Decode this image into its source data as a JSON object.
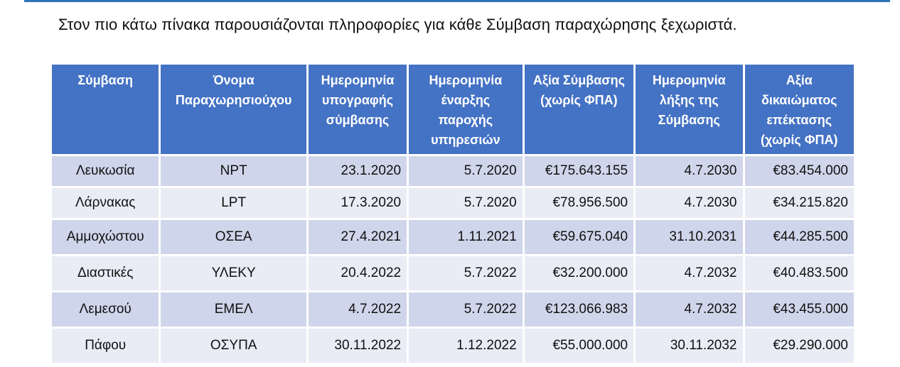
{
  "intro_text": "Στον πιο κάτω πίνακα παρουσιάζονται πληροφορίες για κάθε Σύμβαση παραχώρησης ξεχωριστά.",
  "table": {
    "headers": [
      "Σύμβαση",
      "Όνομα Παραχωρησιούχου",
      "Ημερομηνία υπογραφής σύμβασης",
      "Ημερομηνία έναρξης παροχής υπηρεσιών",
      "Αξία Σύμβασης (χωρίς ΦΠΑ)",
      "Ημερομηνία λήξης της Σύμβασης",
      "Αξία δικαιώματος επέκτασης (χωρίς ΦΠΑ)"
    ],
    "rows": [
      [
        "Λευκωσία",
        "NPT",
        "23.1.2020",
        "5.7.2020",
        "€175.643.155",
        "4.7.2030",
        "€83.454.000"
      ],
      [
        "Λάρνακας",
        "LPT",
        "17.3.2020",
        "5.7.2020",
        "€78.956.500",
        "4.7.2030",
        "€34.215.820"
      ],
      [
        "Αμμοχώστου",
        "ΟΣΕΑ",
        "27.4.2021",
        "1.11.2021",
        "€59.675.040",
        "31.10.2031",
        "€44.285.500"
      ],
      [
        "Διαστικές",
        "ΥΛΕΚΥ",
        "20.4.2022",
        "5.7.2022",
        "€32.200.000",
        "4.7.2032",
        "€40.483.500"
      ],
      [
        "Λεμεσού",
        "ΕΜΕΛ",
        "4.7.2022",
        "5.7.2022",
        "€123.066.983",
        "4.7.2032",
        "€43.455.000"
      ],
      [
        "Πάφου",
        "ΟΣΥΠΑ",
        "30.11.2022",
        "1.12.2022",
        "€55.000.000",
        "30.11.2032",
        "€29.290.000"
      ]
    ]
  },
  "colors": {
    "header_bg": "#4472c4",
    "row_dark": "#cfd5ea",
    "row_light": "#e9ebf5",
    "top_rule": "#2e75b6"
  }
}
